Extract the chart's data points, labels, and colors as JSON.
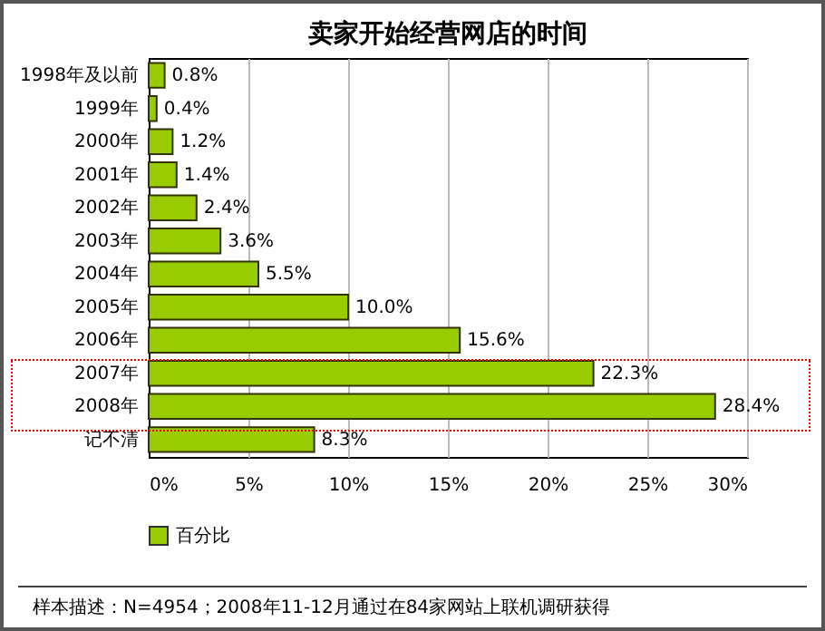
{
  "chart_data": {
    "type": "bar",
    "orientation": "horizontal",
    "title": "卖家开始经营网店的时间",
    "categories": [
      "1998年及以前",
      "1999年",
      "2000年",
      "2001年",
      "2002年",
      "2003年",
      "2004年",
      "2005年",
      "2006年",
      "2007年",
      "2008年",
      "记不清"
    ],
    "series": [
      {
        "name": "百分比",
        "color": "#99cc00",
        "values": [
          0.8,
          0.4,
          1.2,
          1.4,
          2.4,
          3.6,
          5.5,
          10.0,
          15.6,
          22.3,
          28.4,
          8.3
        ]
      }
    ],
    "value_labels": [
      "0.8%",
      "0.4%",
      "1.2%",
      "1.4%",
      "2.4%",
      "3.6%",
      "5.5%",
      "10.0%",
      "15.6%",
      "22.3%",
      "28.4%",
      "8.3%"
    ],
    "xlim": [
      0,
      30
    ],
    "xticks": [
      {
        "value": 0,
        "label": "0%"
      },
      {
        "value": 5,
        "label": "5%"
      },
      {
        "value": 10,
        "label": "10%"
      },
      {
        "value": 15,
        "label": "15%"
      },
      {
        "value": 20,
        "label": "20%"
      },
      {
        "value": 25,
        "label": "25%"
      },
      {
        "value": 30,
        "label": "30%"
      }
    ],
    "grid": "x",
    "legend": "bottom",
    "annotations": [
      "样本描述：N=4954；2008年11-12月通过在84家网站上联机调研获得"
    ]
  }
}
